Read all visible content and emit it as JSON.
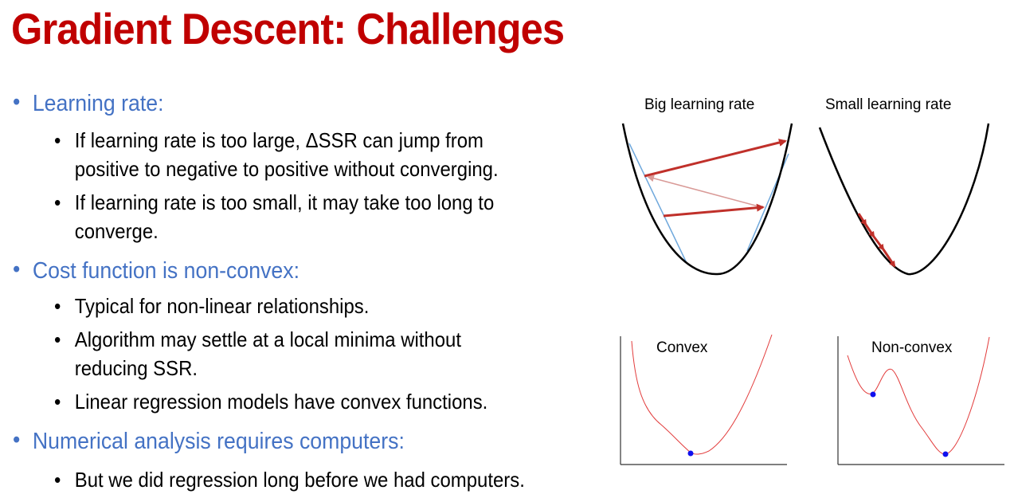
{
  "slide": {
    "title": "Gradient Descent: Challenges"
  },
  "bullets": [
    {
      "text": "Learning rate:",
      "sub": [
        "If learning rate is too large, ΔSSR can jump from positive to negative to positive without converging.",
        "If learning rate is too small, it may take too long to converge."
      ]
    },
    {
      "text": "Cost function is non-convex:",
      "sub": [
        "Typical for non-linear relationships.",
        "Algorithm may settle at a local minima without reducing SSR.",
        "Linear regression models have convex functions."
      ]
    },
    {
      "text": "Numerical analysis requires computers:",
      "sub": [
        "But we did regression long before we had computers."
      ]
    }
  ],
  "figures": {
    "big_lr_label": "Big learning rate",
    "small_lr_label": "Small learning rate",
    "convex_label": "Convex",
    "nonconvex_label": "Non-convex"
  },
  "colors": {
    "title": "#c00000",
    "bullet_l1": "#4472c4",
    "arrow": "#c0302a",
    "curve_red": "#e23b3b",
    "minimum_dot": "#1010ee",
    "tangent": "#6fa8dc"
  },
  "bullet_glyphs": {
    "level1": "•",
    "level2": "•"
  }
}
